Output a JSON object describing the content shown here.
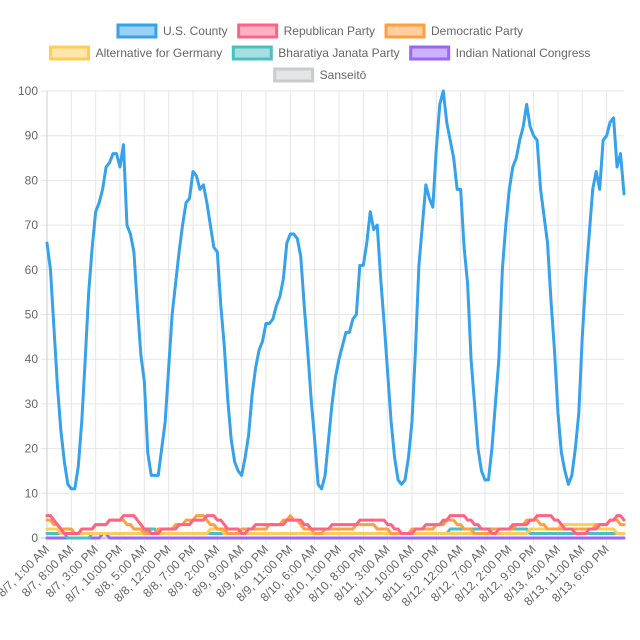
{
  "chart_data": {
    "type": "line",
    "title": "",
    "xlabel": "",
    "ylabel": "",
    "ylim": [
      0,
      100
    ],
    "y_ticks": [
      0,
      10,
      20,
      30,
      40,
      50,
      60,
      70,
      80,
      90,
      100
    ],
    "grid": true,
    "legend_position": "top",
    "x_labels": [
      "8/7, 1:00 AM",
      "8/7, 8:00 AM",
      "8/7, 3:00 PM",
      "8/7, 10:00 PM",
      "8/8, 5:00 AM",
      "8/8, 12:00 PM",
      "8/8, 7:00 PM",
      "8/9, 2:00 AM",
      "8/9, 9:00 AM",
      "8/9, 4:00 PM",
      "8/9, 11:00 PM",
      "8/10, 6:00 AM",
      "8/10, 1:00 PM",
      "8/10, 8:00 PM",
      "8/11, 3:00 AM",
      "8/11, 10:00 AM",
      "8/11, 5:00 PM",
      "8/12, 12:00 AM",
      "8/12, 7:00 AM",
      "8/12, 2:00 PM",
      "8/12, 9:00 PM",
      "8/13, 4:00 AM",
      "8/13, 11:00 AM",
      "8/13, 6:00 PM"
    ],
    "series": [
      {
        "name": "U.S. County",
        "color": "#36a2eb",
        "values": [
          66,
          60,
          47,
          34,
          24,
          17,
          12,
          11,
          11,
          16,
          26,
          40,
          55,
          65,
          73,
          75,
          78,
          83,
          84,
          86,
          86,
          83,
          88,
          70,
          68,
          64,
          52,
          41,
          35,
          19,
          14,
          14,
          14,
          20,
          26,
          38,
          50,
          57,
          64,
          70,
          75,
          76,
          82,
          81,
          78,
          79,
          75,
          70,
          65,
          64,
          52,
          43,
          31,
          22,
          17,
          15,
          14,
          18,
          23,
          32,
          38,
          42,
          44,
          48,
          48,
          49,
          52,
          54,
          58,
          66,
          68,
          68,
          67,
          63,
          52,
          42,
          31,
          22,
          12,
          11,
          14,
          22,
          30,
          36,
          40,
          43,
          46,
          46,
          49,
          50,
          61,
          61,
          66,
          73,
          69,
          70,
          58,
          48,
          37,
          26,
          18,
          13,
          12,
          13,
          18,
          26,
          42,
          61,
          70,
          79,
          76,
          74,
          87,
          97,
          100,
          93,
          89,
          85,
          78,
          78,
          65,
          57,
          40,
          30,
          20,
          15,
          13,
          13,
          20,
          30,
          40,
          60,
          70,
          78,
          83,
          85,
          89,
          92,
          97,
          92,
          90,
          89,
          78,
          72,
          66,
          53,
          42,
          28,
          19,
          15,
          12,
          14,
          20,
          28,
          45,
          58,
          68,
          78,
          82,
          78,
          89,
          90,
          93,
          94,
          83,
          86,
          77
        ]
      },
      {
        "name": "Republican Party",
        "color": "#ff6384",
        "values": [
          5,
          5,
          4,
          3,
          2,
          1,
          1,
          1,
          1,
          1,
          2,
          2,
          2,
          2,
          3,
          3,
          3,
          3,
          4,
          4,
          4,
          4,
          5,
          5,
          5,
          5,
          4,
          3,
          2,
          2,
          1,
          1,
          1,
          2,
          2,
          2,
          2,
          2,
          3,
          3,
          3,
          3,
          4,
          4,
          4,
          4,
          5,
          5,
          5,
          4,
          4,
          3,
          2,
          2,
          2,
          2,
          1,
          1,
          2,
          2,
          3,
          3,
          3,
          3,
          3,
          3,
          3,
          3,
          3,
          4,
          4,
          4,
          4,
          4,
          3,
          3,
          2,
          2,
          2,
          2,
          2,
          2,
          3,
          3,
          3,
          3,
          3,
          3,
          3,
          3,
          4,
          4,
          4,
          4,
          4,
          4,
          4,
          4,
          3,
          3,
          2,
          2,
          1,
          1,
          1,
          1,
          2,
          2,
          2,
          3,
          3,
          3,
          3,
          3,
          4,
          4,
          5,
          5,
          5,
          5,
          5,
          4,
          4,
          3,
          3,
          2,
          2,
          2,
          1,
          1,
          2,
          2,
          2,
          2,
          3,
          3,
          3,
          3,
          3,
          4,
          4,
          5,
          5,
          5,
          5,
          5,
          4,
          4,
          3,
          2,
          2,
          2,
          1,
          1,
          1,
          1,
          2,
          2,
          2,
          3,
          3,
          3,
          4,
          4,
          5,
          5,
          4
        ]
      },
      {
        "name": "Democratic Party",
        "color": "#ff9f40",
        "values": [
          4,
          4,
          3,
          3,
          2,
          2,
          2,
          2,
          1,
          1,
          2,
          2,
          2,
          2,
          3,
          3,
          3,
          3,
          4,
          4,
          4,
          4,
          4,
          3,
          3,
          2,
          2,
          2,
          1,
          1,
          1,
          1,
          2,
          2,
          2,
          2,
          2,
          3,
          3,
          3,
          4,
          4,
          4,
          5,
          5,
          5,
          4,
          3,
          3,
          2,
          2,
          2,
          1,
          1,
          1,
          1,
          2,
          2,
          2,
          2,
          2,
          2,
          2,
          2,
          3,
          3,
          3,
          3,
          4,
          4,
          5,
          4,
          4,
          3,
          2,
          2,
          2,
          1,
          1,
          1,
          2,
          2,
          2,
          2,
          2,
          2,
          2,
          2,
          2,
          3,
          3,
          3,
          3,
          3,
          3,
          2,
          2,
          2,
          2,
          1,
          1,
          1,
          1,
          1,
          1,
          2,
          2,
          2,
          2,
          2,
          2,
          2,
          3,
          3,
          3,
          4,
          4,
          4,
          3,
          3,
          2,
          2,
          2,
          1,
          1,
          1,
          1,
          1,
          2,
          2,
          2,
          2,
          2,
          2,
          2,
          3,
          3,
          3,
          4,
          4,
          4,
          4,
          3,
          3,
          2,
          2,
          2,
          2,
          2,
          2,
          2,
          2,
          2,
          2,
          2,
          2,
          2,
          2,
          3,
          3,
          3,
          3,
          4,
          4,
          4,
          3,
          3
        ]
      },
      {
        "name": "Alternative for Germany",
        "color": "#ffcd56",
        "values": [
          2,
          2,
          2,
          2,
          1,
          1,
          1,
          1,
          1,
          1,
          1,
          1,
          1,
          1,
          1,
          1,
          1,
          1,
          1,
          1,
          1,
          1,
          1,
          1,
          1,
          1,
          1,
          1,
          1,
          1,
          1,
          1,
          1,
          1,
          1,
          1,
          1,
          1,
          1,
          1,
          1,
          1,
          1,
          1,
          1,
          1,
          1,
          2,
          2,
          2,
          2,
          1,
          1,
          1,
          1,
          1,
          1,
          1,
          1,
          1,
          1,
          1,
          1,
          1,
          1,
          1,
          1,
          1,
          1,
          1,
          1,
          1,
          1,
          1,
          1,
          1,
          1,
          1,
          1,
          1,
          1,
          1,
          1,
          1,
          1,
          1,
          1,
          1,
          1,
          1,
          1,
          1,
          1,
          1,
          1,
          1,
          1,
          1,
          1,
          1,
          1,
          1,
          1,
          1,
          1,
          1,
          1,
          1,
          1,
          1,
          1,
          1,
          1,
          1,
          1,
          1,
          1,
          1,
          1,
          1,
          1,
          1,
          1,
          1,
          1,
          1,
          1,
          1,
          1,
          1,
          1,
          1,
          1,
          1,
          1,
          1,
          1,
          1,
          1,
          2,
          2,
          2,
          2,
          2,
          2,
          2,
          2,
          2,
          3,
          3,
          3,
          3,
          3,
          3,
          3,
          3,
          3,
          3,
          3,
          2,
          2,
          2,
          2,
          2,
          1,
          1,
          1
        ]
      },
      {
        "name": "Bharatiya Janata Party",
        "color": "#4bc0c0",
        "values": [
          1,
          1,
          1,
          1,
          1,
          1,
          0,
          0,
          0,
          0,
          0,
          0,
          0,
          1,
          1,
          1,
          1,
          1,
          1,
          1,
          1,
          1,
          1,
          1,
          1,
          1,
          1,
          1,
          1,
          2,
          2,
          2,
          1,
          1,
          1,
          1,
          1,
          1,
          1,
          1,
          1,
          1,
          1,
          1,
          1,
          1,
          1,
          1,
          1,
          1,
          1,
          1,
          1,
          1,
          1,
          1,
          1,
          1,
          1,
          1,
          1,
          1,
          1,
          1,
          1,
          1,
          1,
          1,
          1,
          1,
          1,
          1,
          1,
          1,
          1,
          1,
          1,
          1,
          1,
          1,
          1,
          1,
          1,
          1,
          1,
          1,
          1,
          1,
          1,
          1,
          1,
          1,
          1,
          1,
          1,
          1,
          1,
          1,
          1,
          1,
          1,
          1,
          1,
          1,
          1,
          1,
          1,
          1,
          1,
          1,
          1,
          1,
          1,
          1,
          1,
          1,
          2,
          2,
          2,
          2,
          2,
          2,
          2,
          2,
          2,
          2,
          2,
          2,
          2,
          2,
          2,
          2,
          2,
          2,
          2,
          2,
          2,
          2,
          2,
          1,
          1,
          1,
          1,
          1,
          1,
          1,
          1,
          1,
          1,
          1,
          1,
          1,
          1,
          1,
          1,
          1,
          1,
          1,
          1,
          1,
          1,
          1,
          1,
          1,
          1,
          1,
          1
        ]
      },
      {
        "name": "Indian National Congress",
        "color": "#9966ff",
        "values": [
          0,
          0,
          0,
          0,
          0,
          0,
          0,
          0,
          0,
          0,
          0,
          0,
          0,
          0,
          0,
          0,
          1,
          1,
          0,
          0,
          0,
          0,
          0,
          0,
          0,
          0,
          0,
          0,
          0,
          0,
          0,
          0,
          0,
          0,
          0,
          0,
          0,
          0,
          0,
          0,
          0,
          0,
          0,
          0,
          0,
          0,
          0,
          0,
          0,
          0,
          0,
          0,
          0,
          0,
          0,
          0,
          0,
          0,
          0,
          0,
          0,
          0,
          0,
          0,
          0,
          0,
          0,
          0,
          0,
          0,
          0,
          0,
          0,
          0,
          0,
          0,
          0,
          0,
          0,
          0,
          0,
          0,
          0,
          0,
          0,
          0,
          0,
          0,
          0,
          0,
          0,
          0,
          0,
          0,
          0,
          0,
          0,
          0,
          0,
          0,
          0,
          0,
          0,
          0,
          0,
          0,
          0,
          0,
          0,
          0,
          0,
          0,
          0,
          0,
          0,
          0,
          0,
          0,
          0,
          0,
          0,
          0,
          0,
          0,
          0,
          0,
          0,
          0,
          0,
          0,
          0,
          0,
          0,
          0,
          0,
          0,
          0,
          0,
          0,
          0,
          0,
          0,
          0,
          0,
          0,
          0,
          0,
          0,
          0,
          0,
          0,
          0,
          0,
          0,
          0,
          0,
          0,
          0,
          0,
          0,
          0,
          0,
          0,
          0,
          0,
          0,
          0
        ]
      },
      {
        "name": "Sanseitō",
        "color": "#c9cbcf",
        "values": [
          0,
          0,
          0,
          0,
          0,
          0,
          0,
          0,
          0,
          0,
          0,
          0,
          0,
          0,
          0,
          0,
          0,
          0,
          0,
          0,
          0,
          0,
          0,
          0,
          0,
          0,
          0,
          0,
          0,
          0,
          0,
          0,
          0,
          0,
          0,
          0,
          0,
          0,
          0,
          0,
          0,
          0,
          0,
          0,
          0,
          0,
          0,
          0,
          0,
          0,
          0,
          0,
          0,
          0,
          0,
          0,
          0,
          0,
          0,
          0,
          0,
          0,
          0,
          0,
          0,
          0,
          0,
          0,
          0,
          0,
          0,
          0,
          0,
          0,
          0,
          0,
          0,
          0,
          0,
          0,
          0,
          0,
          0,
          0,
          0,
          0,
          0,
          0,
          0,
          0,
          0,
          0,
          0,
          0,
          0,
          0,
          0,
          0,
          0,
          0,
          0,
          0,
          0,
          0,
          0,
          0,
          0,
          0,
          0,
          0,
          0,
          0,
          0,
          0,
          0,
          0,
          0,
          0,
          0,
          0,
          0,
          0,
          0,
          0,
          0,
          0,
          0,
          0,
          0,
          0,
          0,
          0,
          0,
          0,
          0,
          0,
          0,
          0,
          0,
          0,
          0,
          0,
          0,
          0,
          0,
          0,
          0,
          0,
          0,
          0,
          0,
          0,
          0,
          0,
          0,
          0,
          0,
          0,
          0,
          0,
          0,
          0,
          0,
          0,
          0,
          0,
          0
        ]
      }
    ]
  }
}
